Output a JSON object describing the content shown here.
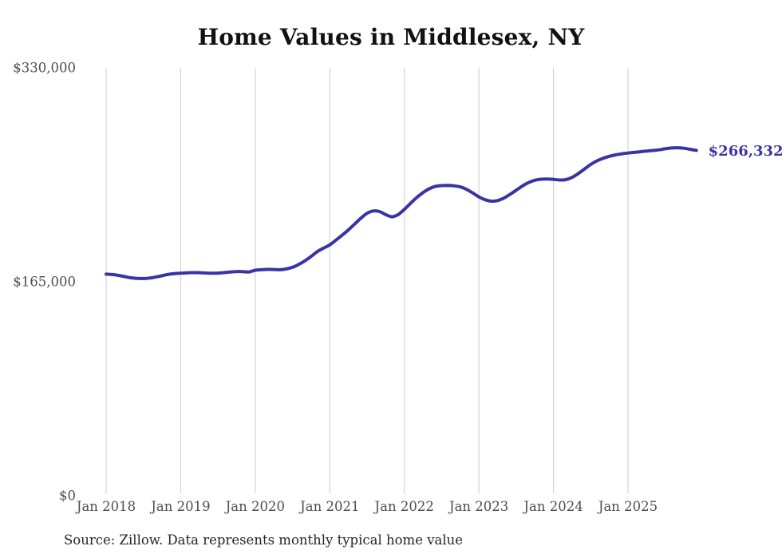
{
  "chart_data": {
    "type": "line",
    "title": "Home Values in Middlesex, NY",
    "series_name": "Monthly typical home value",
    "x_tick_labels": [
      "Jan 2018",
      "Jan 2019",
      "Jan 2020",
      "Jan 2021",
      "Jan 2022",
      "Jan 2023",
      "Jan 2024",
      "Jan 2025"
    ],
    "months_per_tick": 12,
    "x_range_months": [
      "Jan 2018",
      "Dec 2025"
    ],
    "ylim": [
      0,
      330000
    ],
    "y_ticks": [
      {
        "value": 0,
        "label": "$0"
      },
      {
        "value": 165000,
        "label": "$165,000"
      },
      {
        "value": 330000,
        "label": "$330,000"
      }
    ],
    "values": [
      170900,
      170600,
      169900,
      169000,
      168100,
      167600,
      167500,
      167900,
      168700,
      169700,
      170700,
      171300,
      171600,
      171900,
      172100,
      172000,
      171800,
      171600,
      171700,
      172100,
      172600,
      172900,
      172800,
      172600,
      173900,
      174300,
      174600,
      174500,
      174300,
      174900,
      176200,
      178400,
      181200,
      184600,
      188300,
      191000,
      193500,
      197200,
      201000,
      205000,
      209500,
      214000,
      217800,
      219600,
      219200,
      216800,
      215200,
      216800,
      220800,
      225500,
      230000,
      233800,
      236800,
      238600,
      239200,
      239300,
      239000,
      238200,
      236300,
      233500,
      230500,
      228300,
      227200,
      227600,
      229500,
      232400,
      235600,
      238900,
      241500,
      243300,
      244100,
      244300,
      244000,
      243500,
      243800,
      245500,
      248500,
      252000,
      255500,
      258300,
      260300,
      261800,
      262900,
      263700,
      264300,
      264800,
      265300,
      265800,
      266300,
      266800,
      267600,
      268200,
      268400,
      268000,
      267200,
      266332
    ],
    "end_label": "$266,332",
    "latest_value": 266332,
    "line_color": "#3a33a3",
    "grid_color": "#cccccc",
    "axis_label_color": "#4d4d4d",
    "grid": "vertical-only",
    "legend": "none",
    "source": "Source: Zillow. Data represents monthly typical home value"
  }
}
